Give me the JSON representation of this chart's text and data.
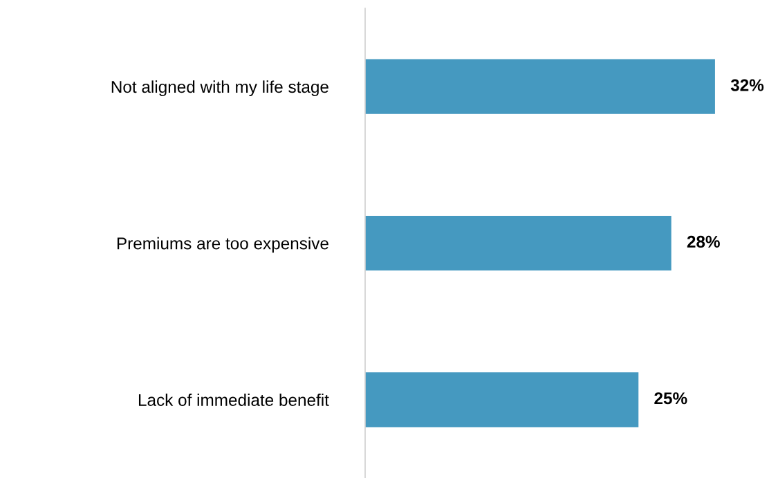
{
  "chart_data": {
    "type": "bar",
    "orientation": "horizontal",
    "categories": [
      "Not aligned with my life stage",
      "Premiums are too expensive",
      "Lack of immediate benefit"
    ],
    "values": [
      32,
      28,
      25
    ],
    "value_labels": [
      "32%",
      "28%",
      "25%"
    ],
    "color": "#4599c0",
    "tick_labels": "y"
  }
}
